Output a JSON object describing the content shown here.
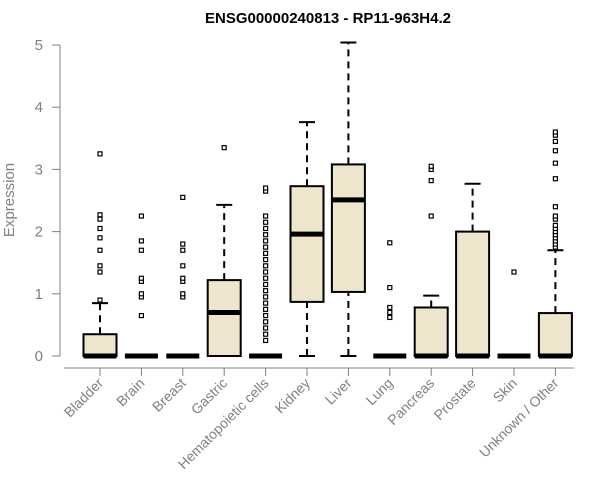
{
  "chart_data": {
    "type": "box",
    "title": "ENSG00000240813 - RP11-963H4.2",
    "xlabel": "",
    "ylabel": "Expression",
    "ylim": [
      0,
      5
    ],
    "yticks": [
      "0",
      "1",
      "2",
      "3",
      "4",
      "5"
    ],
    "box_fill": "#ede6cc",
    "box_stroke": "#000000",
    "grid": false,
    "categories": [
      "Bladder",
      "Brain",
      "Breast",
      "Gastric",
      "Hematopoietic cells",
      "Kidney",
      "Liver",
      "Lung",
      "Pancreas",
      "Prostate",
      "Skin",
      "Unknown / Other"
    ],
    "boxes": [
      {
        "q1": 0,
        "median": 0,
        "q3": 0.35,
        "whisker_low": 0,
        "whisker_high": 0.85,
        "outliers": [
          0.9,
          1.35,
          1.45,
          1.7,
          1.9,
          2.05,
          2.2,
          2.27,
          3.25
        ]
      },
      {
        "q1": 0,
        "median": 0,
        "q3": 0,
        "whisker_low": 0,
        "whisker_high": 0,
        "outliers": [
          0.65,
          0.95,
          1.0,
          1.2,
          1.25,
          1.7,
          1.85,
          2.25
        ]
      },
      {
        "q1": 0,
        "median": 0,
        "q3": 0,
        "whisker_low": 0,
        "whisker_high": 0,
        "outliers": [
          0.95,
          1.0,
          1.2,
          1.25,
          1.45,
          1.7,
          1.8,
          2.55
        ]
      },
      {
        "q1": 0,
        "median": 0.7,
        "q3": 1.22,
        "whisker_low": 0,
        "whisker_high": 2.43,
        "outliers": [
          3.35
        ]
      },
      {
        "q1": 0,
        "median": 0,
        "q3": 0,
        "whisker_low": 0,
        "whisker_high": 0,
        "outliers": [
          0.25,
          0.35,
          0.45,
          0.55,
          0.65,
          0.75,
          0.85,
          0.95,
          1.05,
          1.15,
          1.25,
          1.35,
          1.45,
          1.55,
          1.65,
          1.75,
          1.85,
          1.95,
          2.05,
          2.15,
          2.25,
          2.65,
          2.7
        ]
      },
      {
        "q1": 0.87,
        "median": 1.96,
        "q3": 2.73,
        "whisker_low": 0,
        "whisker_high": 3.76,
        "outliers": []
      },
      {
        "q1": 1.03,
        "median": 2.51,
        "q3": 3.08,
        "whisker_low": 0,
        "whisker_high": 5.04,
        "outliers": []
      },
      {
        "q1": 0,
        "median": 0,
        "q3": 0,
        "whisker_low": 0,
        "whisker_high": 0,
        "outliers": [
          0.62,
          0.7,
          0.78,
          1.1,
          1.82
        ]
      },
      {
        "q1": 0,
        "median": 0,
        "q3": 0.78,
        "whisker_low": 0,
        "whisker_high": 0.97,
        "outliers": [
          2.25,
          2.82,
          3.0,
          3.05
        ]
      },
      {
        "q1": 0,
        "median": 0,
        "q3": 2.0,
        "whisker_low": 0,
        "whisker_high": 2.77,
        "outliers": []
      },
      {
        "q1": 0,
        "median": 0,
        "q3": 0,
        "whisker_low": 0,
        "whisker_high": 0,
        "outliers": [
          1.35
        ]
      },
      {
        "q1": 0,
        "median": 0,
        "q3": 0.69,
        "whisker_low": 0,
        "whisker_high": 1.7,
        "outliers": [
          1.75,
          1.8,
          1.85,
          1.9,
          1.95,
          2.0,
          2.05,
          2.1,
          2.2,
          2.25,
          2.4,
          2.85,
          3.1,
          3.3,
          3.45,
          3.55,
          3.6
        ]
      }
    ]
  }
}
